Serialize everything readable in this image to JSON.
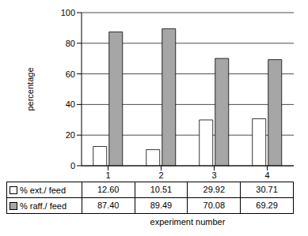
{
  "chart_data": {
    "type": "bar",
    "x_label": "experiment number",
    "y_label": "percentage",
    "categories": [
      "1",
      "2",
      "3",
      "4"
    ],
    "series": [
      {
        "name": "% ext./ feed",
        "color": "#ffffff",
        "values": [
          12.6,
          10.51,
          29.92,
          30.71
        ],
        "value_labels": [
          "12.60",
          "10.51",
          "29.92",
          "30.71"
        ]
      },
      {
        "name": "% raff./ feed",
        "color": "#a6a6a6",
        "values": [
          87.4,
          89.49,
          70.08,
          69.29
        ],
        "value_labels": [
          "87.40",
          "89.49",
          "70.08",
          "69.29"
        ]
      }
    ],
    "ylim": [
      0,
      100
    ],
    "yticks": [
      0,
      20,
      40,
      60,
      80,
      100
    ],
    "grid": true
  }
}
